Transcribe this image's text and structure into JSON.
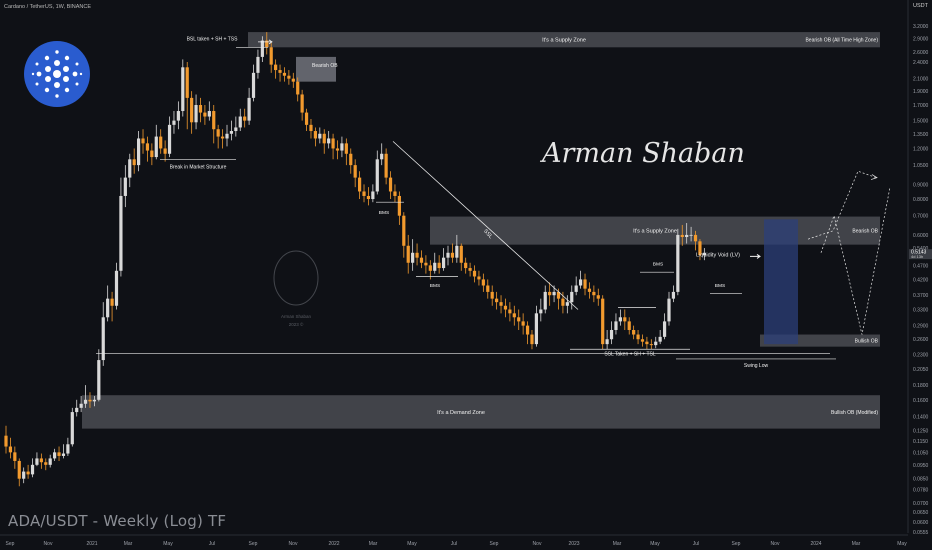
{
  "header": {
    "symbol_line": "Cardano / TetherUS, 1W, BINANCE",
    "currency": "USDT"
  },
  "watermark": "ADA/USDT - Weekly (Log) TF",
  "signature": "Arman Shaban",
  "logo_caption": {
    "line1": "Arman Shaban",
    "line2": "2023 ©"
  },
  "colors": {
    "background": "#0f1116",
    "up": "#d9d9d9",
    "down": "#f29a2e",
    "zone": "#6b6e75",
    "lv_box": "#2c3f7a",
    "cardano_blue": "#2a5ccf"
  },
  "price_tag": {
    "price": "0.5143",
    "sub": "4d 13h"
  },
  "chart_data": {
    "type": "candlestick",
    "scale": "log",
    "ylim": [
      0.055,
      3.7
    ],
    "y_ticks": [
      0.0555,
      0.06,
      0.065,
      0.07,
      0.078,
      0.085,
      0.095,
      0.105,
      0.115,
      0.125,
      0.14,
      0.16,
      0.18,
      0.205,
      0.23,
      0.26,
      0.29,
      0.33,
      0.37,
      0.42,
      0.47,
      0.54,
      0.6,
      0.7,
      0.8,
      0.9,
      1.05,
      1.2,
      1.35,
      1.5,
      1.7,
      1.9,
      2.1,
      2.4,
      2.6,
      2.9,
      3.2,
      3.7
    ],
    "x_labels": [
      "Sep",
      "Nov",
      "2021",
      "Mar",
      "May",
      "Jul",
      "Sep",
      "Nov",
      "2022",
      "Mar",
      "May",
      "Jul",
      "Sep",
      "Nov",
      "2023",
      "Mar",
      "May",
      "Jul",
      "Sep",
      "Nov",
      "2024",
      "Mar",
      "May"
    ],
    "zones": [
      {
        "label": "It's a Supply Zone",
        "side_label": "Bearish OB (All Time High Zone)",
        "low": 2.7,
        "high": 3.05
      },
      {
        "label": "It's a Supply Zone",
        "side_label": "Bearish OB",
        "low": 0.555,
        "high": 0.695
      },
      {
        "label": "It's a Demand Zone",
        "side_label": "Bullish OB (Modified)",
        "low": 0.127,
        "high": 0.166
      },
      {
        "label": "",
        "side_label": "Bullish OB",
        "low": 0.245,
        "high": 0.27
      },
      {
        "label": "",
        "side_label": "Bearish OB",
        "low": 2.05,
        "high": 2.5
      }
    ],
    "annotations": [
      "BSL taken + SH + TSS",
      "Break in Market Structure",
      "BMS",
      "BMS",
      "BMS",
      "BMS",
      "SSL",
      "SSL Taken + SH + TSL",
      "Swing Low",
      "Liquidity Void (LV)"
    ],
    "candles": [
      [
        0.12,
        0.11,
        0.13,
        0.104
      ],
      [
        0.11,
        0.105,
        0.118,
        0.1
      ],
      [
        0.105,
        0.098,
        0.11,
        0.092
      ],
      [
        0.098,
        0.085,
        0.1,
        0.08
      ],
      [
        0.085,
        0.09,
        0.093,
        0.082
      ],
      [
        0.09,
        0.088,
        0.095,
        0.085
      ],
      [
        0.088,
        0.095,
        0.1,
        0.086
      ],
      [
        0.095,
        0.1,
        0.105,
        0.094
      ],
      [
        0.1,
        0.097,
        0.104,
        0.092
      ],
      [
        0.097,
        0.095,
        0.1,
        0.091
      ],
      [
        0.095,
        0.1,
        0.103,
        0.093
      ],
      [
        0.1,
        0.105,
        0.108,
        0.098
      ],
      [
        0.105,
        0.102,
        0.11,
        0.098
      ],
      [
        0.102,
        0.104,
        0.112,
        0.1
      ],
      [
        0.104,
        0.112,
        0.118,
        0.102
      ],
      [
        0.112,
        0.145,
        0.15,
        0.11
      ],
      [
        0.145,
        0.15,
        0.16,
        0.14
      ],
      [
        0.15,
        0.155,
        0.165,
        0.145
      ],
      [
        0.155,
        0.16,
        0.18,
        0.15
      ],
      [
        0.16,
        0.158,
        0.17,
        0.15
      ],
      [
        0.158,
        0.16,
        0.165,
        0.152
      ],
      [
        0.16,
        0.22,
        0.24,
        0.158
      ],
      [
        0.22,
        0.31,
        0.35,
        0.21
      ],
      [
        0.31,
        0.36,
        0.4,
        0.3
      ],
      [
        0.36,
        0.34,
        0.38,
        0.3
      ],
      [
        0.34,
        0.45,
        0.48,
        0.33
      ],
      [
        0.45,
        0.82,
        0.95,
        0.43
      ],
      [
        0.82,
        0.95,
        1.05,
        0.75
      ],
      [
        0.95,
        1.1,
        1.15,
        0.88
      ],
      [
        1.1,
        1.05,
        1.2,
        0.98
      ],
      [
        1.05,
        1.3,
        1.38,
        1.0
      ],
      [
        1.3,
        1.25,
        1.4,
        1.15
      ],
      [
        1.25,
        1.18,
        1.32,
        1.08
      ],
      [
        1.18,
        1.12,
        1.25,
        1.05
      ],
      [
        1.12,
        1.32,
        1.45,
        1.1
      ],
      [
        1.32,
        1.2,
        1.4,
        1.15
      ],
      [
        1.2,
        1.15,
        1.28,
        1.08
      ],
      [
        1.15,
        1.45,
        1.55,
        1.12
      ],
      [
        1.45,
        1.5,
        1.62,
        1.35
      ],
      [
        1.5,
        1.62,
        1.75,
        1.4
      ],
      [
        1.62,
        2.3,
        2.45,
        1.55
      ],
      [
        2.3,
        1.8,
        2.4,
        1.4
      ],
      [
        1.8,
        1.48,
        1.9,
        1.35
      ],
      [
        1.48,
        1.7,
        1.85,
        1.4
      ],
      [
        1.7,
        1.6,
        1.8,
        1.48
      ],
      [
        1.6,
        1.55,
        1.7,
        1.45
      ],
      [
        1.55,
        1.62,
        1.75,
        1.5
      ],
      [
        1.62,
        1.4,
        1.7,
        1.25
      ],
      [
        1.4,
        1.32,
        1.45,
        1.2
      ],
      [
        1.32,
        1.3,
        1.4,
        1.2
      ],
      [
        1.3,
        1.35,
        1.45,
        1.22
      ],
      [
        1.35,
        1.38,
        1.5,
        1.28
      ],
      [
        1.38,
        1.42,
        1.55,
        1.32
      ],
      [
        1.42,
        1.55,
        1.65,
        1.38
      ],
      [
        1.55,
        1.5,
        1.65,
        1.42
      ],
      [
        1.5,
        1.8,
        1.95,
        1.45
      ],
      [
        1.8,
        2.2,
        2.35,
        1.75
      ],
      [
        2.2,
        2.5,
        2.65,
        2.1
      ],
      [
        2.5,
        2.85,
        2.95,
        2.4
      ],
      [
        2.85,
        2.7,
        3.05,
        2.55
      ],
      [
        2.7,
        2.35,
        2.8,
        2.2
      ],
      [
        2.35,
        2.25,
        2.45,
        2.1
      ],
      [
        2.25,
        2.2,
        2.35,
        2.05
      ],
      [
        2.2,
        2.15,
        2.3,
        2.05
      ],
      [
        2.15,
        2.1,
        2.25,
        2.0
      ],
      [
        2.1,
        2.05,
        2.2,
        1.95
      ],
      [
        2.05,
        1.85,
        2.12,
        1.75
      ],
      [
        1.85,
        1.6,
        1.92,
        1.5
      ],
      [
        1.6,
        1.45,
        1.65,
        1.38
      ],
      [
        1.45,
        1.38,
        1.52,
        1.3
      ],
      [
        1.38,
        1.3,
        1.42,
        1.22
      ],
      [
        1.3,
        1.35,
        1.42,
        1.25
      ],
      [
        1.35,
        1.25,
        1.4,
        1.15
      ],
      [
        1.25,
        1.3,
        1.38,
        1.2
      ],
      [
        1.3,
        1.2,
        1.35,
        1.1
      ],
      [
        1.2,
        1.18,
        1.28,
        1.1
      ],
      [
        1.18,
        1.25,
        1.32,
        1.12
      ],
      [
        1.25,
        1.15,
        1.3,
        1.05
      ],
      [
        1.15,
        1.05,
        1.2,
        0.98
      ],
      [
        1.05,
        0.95,
        1.1,
        0.88
      ],
      [
        0.95,
        0.85,
        1.0,
        0.8
      ],
      [
        0.85,
        0.82,
        0.9,
        0.78
      ],
      [
        0.82,
        0.8,
        0.88,
        0.76
      ],
      [
        0.8,
        0.85,
        0.9,
        0.78
      ],
      [
        0.85,
        1.1,
        1.18,
        0.83
      ],
      [
        1.1,
        1.15,
        1.25,
        1.05
      ],
      [
        1.15,
        0.95,
        1.2,
        0.9
      ],
      [
        0.95,
        0.85,
        1.0,
        0.8
      ],
      [
        0.85,
        0.82,
        0.9,
        0.78
      ],
      [
        0.82,
        0.7,
        0.85,
        0.65
      ],
      [
        0.7,
        0.55,
        0.72,
        0.5
      ],
      [
        0.55,
        0.48,
        0.6,
        0.44
      ],
      [
        0.48,
        0.52,
        0.58,
        0.45
      ],
      [
        0.52,
        0.5,
        0.56,
        0.47
      ],
      [
        0.5,
        0.48,
        0.53,
        0.46
      ],
      [
        0.48,
        0.47,
        0.51,
        0.44
      ],
      [
        0.47,
        0.45,
        0.49,
        0.42
      ],
      [
        0.45,
        0.48,
        0.52,
        0.44
      ],
      [
        0.48,
        0.46,
        0.51,
        0.44
      ],
      [
        0.46,
        0.5,
        0.54,
        0.45
      ],
      [
        0.5,
        0.52,
        0.55,
        0.47
      ],
      [
        0.52,
        0.5,
        0.56,
        0.48
      ],
      [
        0.5,
        0.55,
        0.6,
        0.48
      ],
      [
        0.55,
        0.48,
        0.56,
        0.45
      ],
      [
        0.48,
        0.46,
        0.5,
        0.44
      ],
      [
        0.46,
        0.45,
        0.48,
        0.43
      ],
      [
        0.45,
        0.43,
        0.47,
        0.41
      ],
      [
        0.43,
        0.42,
        0.45,
        0.4
      ],
      [
        0.42,
        0.4,
        0.44,
        0.38
      ],
      [
        0.4,
        0.38,
        0.42,
        0.36
      ],
      [
        0.38,
        0.36,
        0.4,
        0.34
      ],
      [
        0.36,
        0.35,
        0.38,
        0.33
      ],
      [
        0.35,
        0.34,
        0.37,
        0.32
      ],
      [
        0.34,
        0.33,
        0.36,
        0.31
      ],
      [
        0.33,
        0.32,
        0.35,
        0.3
      ],
      [
        0.32,
        0.31,
        0.34,
        0.29
      ],
      [
        0.31,
        0.3,
        0.33,
        0.28
      ],
      [
        0.3,
        0.29,
        0.32,
        0.27
      ],
      [
        0.29,
        0.27,
        0.3,
        0.25
      ],
      [
        0.27,
        0.25,
        0.28,
        0.24
      ],
      [
        0.25,
        0.32,
        0.34,
        0.245
      ],
      [
        0.32,
        0.33,
        0.36,
        0.3
      ],
      [
        0.33,
        0.38,
        0.4,
        0.32
      ],
      [
        0.38,
        0.37,
        0.41,
        0.34
      ],
      [
        0.37,
        0.38,
        0.4,
        0.35
      ],
      [
        0.38,
        0.36,
        0.39,
        0.33
      ],
      [
        0.36,
        0.34,
        0.38,
        0.32
      ],
      [
        0.34,
        0.35,
        0.37,
        0.32
      ],
      [
        0.35,
        0.38,
        0.4,
        0.33
      ],
      [
        0.38,
        0.4,
        0.43,
        0.37
      ],
      [
        0.4,
        0.42,
        0.45,
        0.39
      ],
      [
        0.42,
        0.39,
        0.44,
        0.37
      ],
      [
        0.39,
        0.38,
        0.41,
        0.36
      ],
      [
        0.38,
        0.37,
        0.4,
        0.35
      ],
      [
        0.37,
        0.36,
        0.39,
        0.34
      ],
      [
        0.36,
        0.25,
        0.37,
        0.24
      ],
      [
        0.25,
        0.26,
        0.28,
        0.24
      ],
      [
        0.26,
        0.28,
        0.3,
        0.25
      ],
      [
        0.28,
        0.3,
        0.32,
        0.27
      ],
      [
        0.3,
        0.31,
        0.33,
        0.29
      ],
      [
        0.31,
        0.3,
        0.33,
        0.28
      ],
      [
        0.3,
        0.28,
        0.31,
        0.27
      ],
      [
        0.28,
        0.27,
        0.29,
        0.26
      ],
      [
        0.27,
        0.26,
        0.28,
        0.25
      ],
      [
        0.26,
        0.255,
        0.27,
        0.245
      ],
      [
        0.255,
        0.25,
        0.265,
        0.24
      ],
      [
        0.25,
        0.248,
        0.26,
        0.24
      ],
      [
        0.248,
        0.255,
        0.265,
        0.242
      ],
      [
        0.255,
        0.265,
        0.28,
        0.25
      ],
      [
        0.265,
        0.3,
        0.32,
        0.26
      ],
      [
        0.3,
        0.36,
        0.38,
        0.29
      ],
      [
        0.36,
        0.38,
        0.4,
        0.35
      ],
      [
        0.38,
        0.6,
        0.63,
        0.37
      ],
      [
        0.6,
        0.59,
        0.65,
        0.55
      ],
      [
        0.59,
        0.6,
        0.66,
        0.56
      ],
      [
        0.6,
        0.6,
        0.64,
        0.57
      ],
      [
        0.6,
        0.57,
        0.62,
        0.53
      ],
      [
        0.57,
        0.51,
        0.58,
        0.49
      ],
      [
        0.51,
        0.52,
        0.54,
        0.49
      ]
    ]
  }
}
